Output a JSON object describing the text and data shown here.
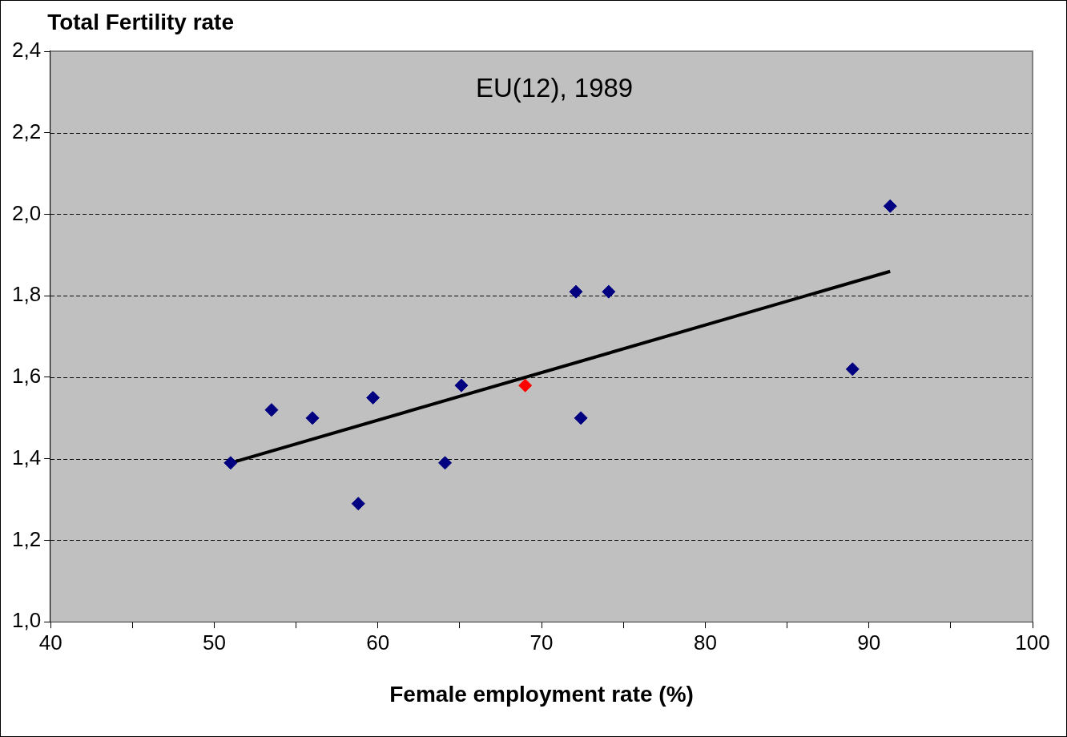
{
  "chart_data": {
    "type": "scatter",
    "ylabel": "Total Fertility rate",
    "xlabel": "Female employment rate (%)",
    "annotations": [
      "EU(12), 1989"
    ],
    "series": [
      {
        "type": "scatter",
        "color": "#000080",
        "x": [
          51.0,
          53.5,
          56.0,
          58.8,
          59.7,
          64.1,
          65.1,
          72.1,
          72.4,
          74.1,
          89.0,
          91.3
        ],
        "values": [
          1.39,
          1.52,
          1.5,
          1.29,
          1.55,
          1.39,
          1.58,
          1.81,
          1.5,
          1.81,
          1.62,
          2.02
        ]
      },
      {
        "type": "scatter",
        "color": "#ff0000",
        "x": [
          69.0
        ],
        "values": [
          1.58
        ]
      },
      {
        "type": "line",
        "color": "#000000",
        "x": [
          51.0,
          91.3
        ],
        "values": [
          1.39,
          1.86
        ],
        "marker": "none"
      }
    ],
    "marker": "diamond",
    "grid": "y",
    "legend": false,
    "xlim": [
      40,
      100
    ],
    "xticks": [
      40,
      {
        "value": 45,
        "label": null
      },
      50,
      {
        "value": 55,
        "label": null
      },
      60,
      {
        "value": 65,
        "label": null
      },
      70,
      {
        "value": 75,
        "label": null
      },
      80,
      {
        "value": 85,
        "label": null
      },
      90,
      {
        "value": 95,
        "label": null
      },
      100
    ],
    "ylim": [
      1.0,
      2.4
    ],
    "yticks": [
      {
        "value": 1.0,
        "label": "1,0"
      },
      {
        "value": 1.2,
        "label": "1,2"
      },
      {
        "value": 1.4,
        "label": "1,4"
      },
      {
        "value": 1.6,
        "label": "1,6"
      },
      {
        "value": 1.8,
        "label": "1,8"
      },
      {
        "value": 2.0,
        "label": "2,0"
      },
      {
        "value": 2.2,
        "label": "2,2"
      },
      {
        "value": 2.4,
        "label": "2,4"
      }
    ]
  }
}
